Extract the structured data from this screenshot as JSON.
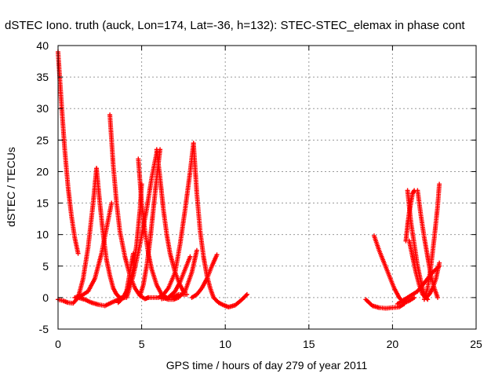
{
  "chart_data": {
    "type": "scatter",
    "title": "dSTEC Iono. truth (auck, Lon=174, Lat=-36, h=132): STEC-STEC_elemax in phase cont",
    "xlabel": "GPS time / hours of day 279 of year 2011",
    "ylabel": "dSTEC  / TECUs",
    "xlim": [
      0,
      25
    ],
    "ylim": [
      -5,
      40
    ],
    "xticks": [
      0,
      5,
      10,
      15,
      20,
      25
    ],
    "yticks": [
      -5,
      0,
      5,
      10,
      15,
      20,
      25,
      30,
      35,
      40
    ],
    "grid": true,
    "marker": "plus",
    "color": "#ff0000",
    "series": [
      {
        "x": [
          0.0,
          0.2,
          0.4,
          0.6,
          0.8,
          1.0,
          1.2
        ],
        "y": [
          39.0,
          31.0,
          23.5,
          17.5,
          13.0,
          9.5,
          7.0
        ]
      },
      {
        "x": [
          0.0,
          0.3,
          0.6,
          0.9,
          1.2,
          1.5,
          1.8,
          2.1,
          2.3
        ],
        "y": [
          -0.3,
          -0.5,
          -0.8,
          -0.9,
          0.0,
          3.0,
          8.0,
          15.0,
          20.5
        ]
      },
      {
        "x": [
          2.3,
          2.5,
          2.7,
          2.9,
          3.1,
          3.3,
          3.5,
          3.7,
          3.9,
          4.1,
          4.3,
          4.5
        ],
        "y": [
          20.5,
          15.0,
          10.0,
          6.0,
          3.5,
          1.5,
          0.5,
          0.0,
          0.0,
          1.0,
          4.0,
          7.0
        ]
      },
      {
        "x": [
          1.0,
          1.4,
          1.8,
          2.2,
          2.6,
          2.9,
          3.2
        ],
        "y": [
          0.0,
          0.3,
          1.0,
          3.0,
          7.0,
          11.0,
          15.0
        ]
      },
      {
        "x": [
          1.2,
          1.6,
          2.0,
          2.4,
          2.8,
          3.2,
          3.6,
          4.0
        ],
        "y": [
          0.0,
          -0.3,
          -0.8,
          -1.1,
          -1.3,
          -0.8,
          -0.3,
          0.0
        ]
      },
      {
        "x": [
          3.1,
          3.3,
          3.5,
          3.7,
          4.0,
          4.3,
          4.6,
          4.9,
          5.2,
          5.4
        ],
        "y": [
          29.0,
          21.0,
          15.0,
          10.5,
          6.5,
          3.5,
          1.5,
          0.3,
          -0.2,
          0.0
        ]
      },
      {
        "x": [
          3.6,
          3.9,
          4.2,
          4.5,
          4.7,
          4.9,
          5.0
        ],
        "y": [
          -0.8,
          0.0,
          1.5,
          4.5,
          8.5,
          14.0,
          18.0
        ]
      },
      {
        "x": [
          4.1,
          4.5,
          4.9,
          5.3,
          5.6,
          5.9
        ],
        "y": [
          0.0,
          3.5,
          8.5,
          14.0,
          19.0,
          23.0
        ]
      },
      {
        "x": [
          4.8,
          4.9,
          5.0,
          5.2,
          5.4,
          5.6,
          5.9,
          6.2,
          6.5,
          6.8,
          7.2,
          7.7
        ],
        "y": [
          22.0,
          18.5,
          15.0,
          10.5,
          7.0,
          4.5,
          2.0,
          0.5,
          0.0,
          0.0,
          0.5,
          0.5
        ]
      },
      {
        "x": [
          4.9,
          5.1,
          5.3,
          5.5,
          5.7,
          5.9,
          6.1
        ],
        "y": [
          0.3,
          2.0,
          5.0,
          9.0,
          14.0,
          19.0,
          23.5
        ]
      },
      {
        "x": [
          5.9,
          6.1,
          6.3,
          6.5,
          6.7,
          7.0,
          7.3,
          7.5
        ],
        "y": [
          23.5,
          19.0,
          14.0,
          10.0,
          7.0,
          4.0,
          2.0,
          1.0
        ]
      },
      {
        "x": [
          5.4,
          5.7,
          6.0,
          6.3,
          6.6,
          7.0,
          7.3,
          7.6,
          7.9,
          8.1
        ],
        "y": [
          0.0,
          0.0,
          0.0,
          0.5,
          1.5,
          4.0,
          8.5,
          14.0,
          20.0,
          24.5
        ]
      },
      {
        "x": [
          8.1,
          8.3,
          8.5,
          8.7,
          8.9,
          9.1,
          9.3,
          9.6,
          9.9,
          10.2,
          10.6,
          11.0,
          11.3
        ],
        "y": [
          24.5,
          16.5,
          10.5,
          6.5,
          3.5,
          1.5,
          0.0,
          -0.8,
          -1.2,
          -1.5,
          -1.2,
          -0.3,
          0.5
        ]
      },
      {
        "x": [
          6.2,
          6.6,
          7.0,
          7.3,
          7.6,
          7.9
        ],
        "y": [
          -0.2,
          0.0,
          1.0,
          2.5,
          4.5,
          6.5
        ]
      },
      {
        "x": [
          6.3,
          6.6,
          6.9,
          7.2,
          7.6,
          8.0,
          8.3
        ],
        "y": [
          0.0,
          -0.3,
          -0.3,
          0.0,
          1.0,
          4.0,
          7.5
        ]
      },
      {
        "x": [
          8.0,
          8.3,
          8.6,
          8.9,
          9.2,
          9.5
        ],
        "y": [
          0.0,
          0.5,
          1.5,
          3.0,
          5.0,
          6.8
        ]
      },
      {
        "x": [
          18.4,
          18.8,
          19.2,
          19.6,
          20.0,
          20.4,
          20.7
        ],
        "y": [
          -0.3,
          -1.3,
          -1.6,
          -1.7,
          -1.6,
          -1.5,
          -1.0
        ]
      },
      {
        "x": [
          18.9,
          19.2,
          19.5,
          19.8,
          20.1,
          20.4,
          20.7,
          21.0,
          21.3
        ],
        "y": [
          9.8,
          7.5,
          5.5,
          3.5,
          1.5,
          0.0,
          -0.8,
          -0.5,
          0.0
        ]
      },
      {
        "x": [
          20.3,
          20.6,
          20.9,
          21.2,
          21.5,
          21.8,
          22.1,
          22.4,
          22.8
        ],
        "y": [
          -1.0,
          -0.5,
          0.0,
          0.5,
          1.0,
          2.0,
          3.0,
          4.0,
          5.0
        ]
      },
      {
        "x": [
          20.8,
          20.9,
          21.0,
          21.1,
          21.2,
          21.3
        ],
        "y": [
          9.0,
          11.5,
          13.5,
          15.0,
          16.5,
          17.0
        ]
      },
      {
        "x": [
          20.9,
          21.1,
          21.3,
          21.5,
          21.7,
          21.9,
          22.1
        ],
        "y": [
          17.0,
          12.0,
          8.5,
          5.0,
          2.5,
          0.5,
          -0.3
        ]
      },
      {
        "x": [
          21.0,
          21.2,
          21.4,
          21.6,
          21.8,
          22.0,
          22.2,
          22.4,
          22.6,
          22.8
        ],
        "y": [
          9.0,
          6.5,
          4.0,
          2.0,
          0.5,
          0.0,
          0.5,
          1.5,
          3.0,
          5.5
        ]
      },
      {
        "x": [
          21.5,
          21.7,
          21.9,
          22.1,
          22.3,
          22.5,
          22.7
        ],
        "y": [
          17.0,
          13.0,
          9.5,
          6.5,
          3.5,
          1.5,
          0.0
        ]
      },
      {
        "x": [
          21.9,
          22.1,
          22.3,
          22.5,
          22.7,
          22.8
        ],
        "y": [
          -0.3,
          1.5,
          5.0,
          9.5,
          14.5,
          18.0
        ]
      }
    ]
  }
}
